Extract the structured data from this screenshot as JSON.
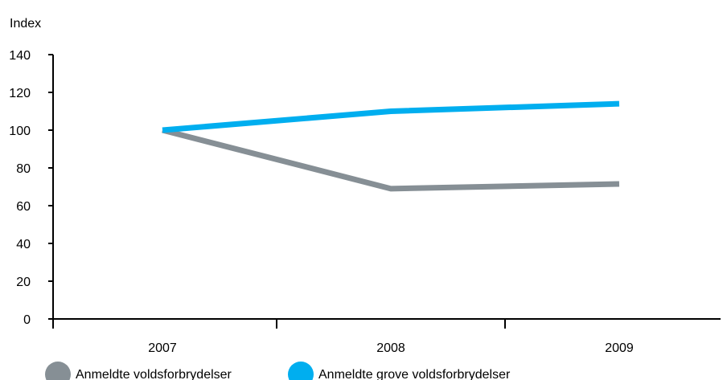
{
  "chart_data": {
    "type": "line",
    "ylabel": "Index",
    "categories": [
      "2007",
      "2008",
      "2009"
    ],
    "ylim": [
      0,
      140
    ],
    "yticks": [
      0,
      20,
      40,
      60,
      80,
      100,
      120,
      140
    ],
    "grid": false,
    "legend_position": "bottom-left",
    "series": [
      {
        "name": "Anmeldte voldsforbrydelser",
        "color": "#868f95",
        "values": [
          100,
          69,
          71.5
        ]
      },
      {
        "name": "Anmeldte grove voldsforbrydelser",
        "color": "#00aeef",
        "values": [
          100,
          110,
          114
        ]
      }
    ]
  }
}
